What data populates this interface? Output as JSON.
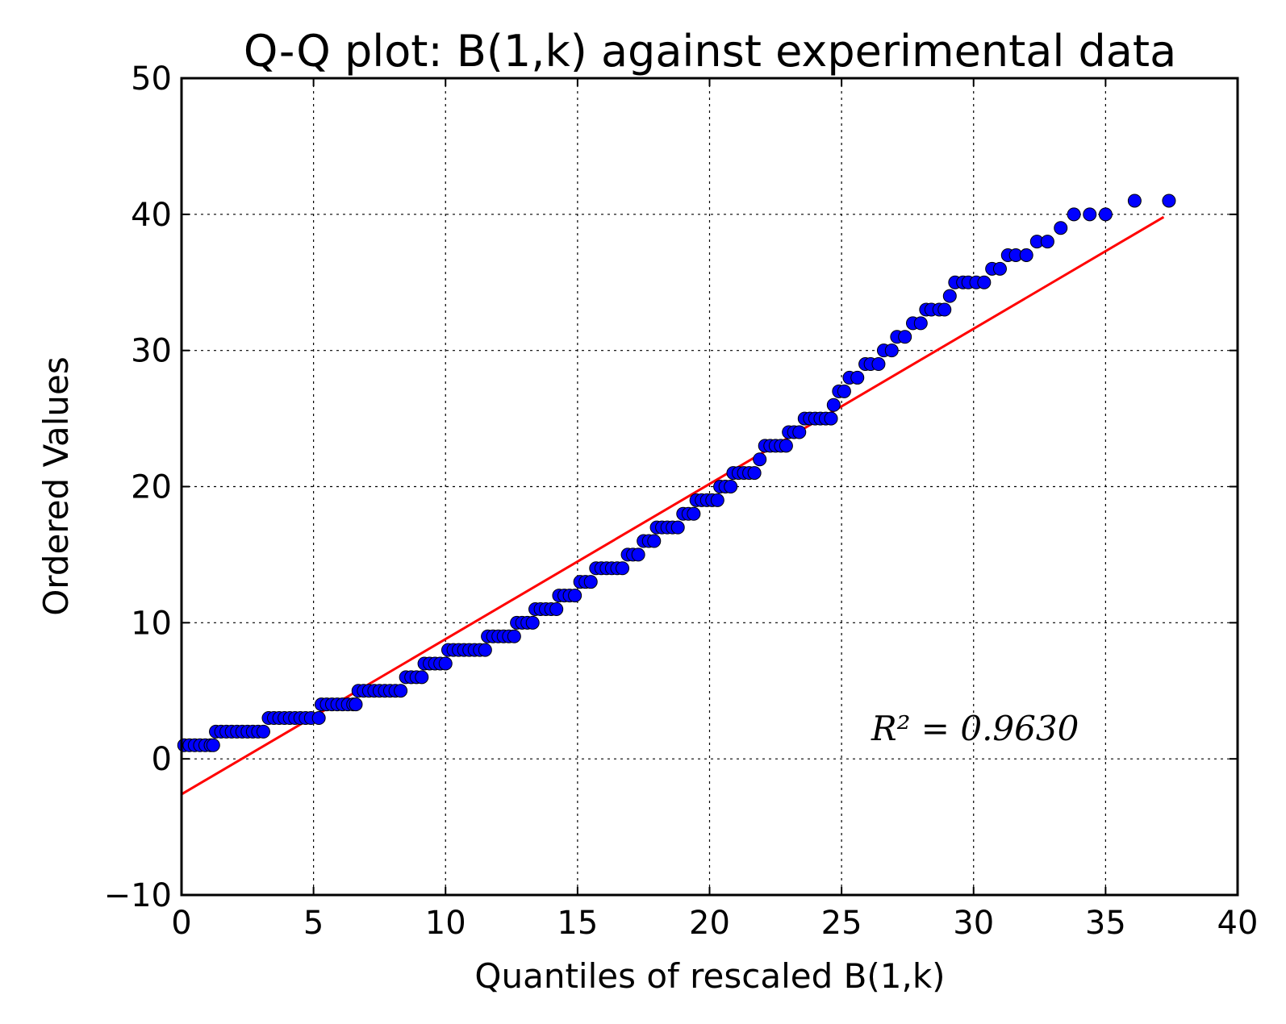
{
  "chart_data": {
    "type": "scatter",
    "title": "Q-Q plot: B(1,k) against experimental data",
    "xlabel": "Quantiles of rescaled B(1,k)",
    "ylabel": "Ordered Values",
    "xlim": [
      0,
      40
    ],
    "ylim": [
      -10,
      50
    ],
    "x_ticks": [
      "0",
      "5",
      "10",
      "15",
      "20",
      "25",
      "30",
      "35",
      "40"
    ],
    "y_ticks": [
      "−10",
      "0",
      "10",
      "20",
      "30",
      "40",
      "50"
    ],
    "grid": true,
    "annotation": {
      "text": "R² = 0.9630",
      "r_squared": "0.9630"
    },
    "fit_line": {
      "x": [
        0,
        37.2
      ],
      "y": [
        -2.6,
        39.8
      ],
      "color": "#ff0000"
    },
    "marker_color": "#0000ff",
    "series": [
      {
        "name": "data",
        "points": [
          [
            0.1,
            1
          ],
          [
            0.3,
            1
          ],
          [
            0.5,
            1
          ],
          [
            0.7,
            1
          ],
          [
            0.9,
            1
          ],
          [
            1.1,
            1
          ],
          [
            1.2,
            1
          ],
          [
            1.3,
            2
          ],
          [
            1.5,
            2
          ],
          [
            1.7,
            2
          ],
          [
            1.9,
            2
          ],
          [
            2.1,
            2
          ],
          [
            2.3,
            2
          ],
          [
            2.5,
            2
          ],
          [
            2.7,
            2
          ],
          [
            2.9,
            2
          ],
          [
            3.1,
            2
          ],
          [
            3.3,
            3
          ],
          [
            3.5,
            3
          ],
          [
            3.7,
            3
          ],
          [
            3.9,
            3
          ],
          [
            4.1,
            3
          ],
          [
            4.3,
            3
          ],
          [
            4.5,
            3
          ],
          [
            4.7,
            3
          ],
          [
            4.9,
            3
          ],
          [
            5.2,
            3
          ],
          [
            5.3,
            4
          ],
          [
            5.5,
            4
          ],
          [
            5.7,
            4
          ],
          [
            5.9,
            4
          ],
          [
            6.1,
            4
          ],
          [
            6.3,
            4
          ],
          [
            6.5,
            4
          ],
          [
            6.6,
            4
          ],
          [
            6.7,
            5
          ],
          [
            6.9,
            5
          ],
          [
            7.1,
            5
          ],
          [
            7.3,
            5
          ],
          [
            7.5,
            5
          ],
          [
            7.7,
            5
          ],
          [
            7.9,
            5
          ],
          [
            8.1,
            5
          ],
          [
            8.3,
            5
          ],
          [
            8.5,
            6
          ],
          [
            8.7,
            6
          ],
          [
            8.9,
            6
          ],
          [
            9.1,
            6
          ],
          [
            9.2,
            7
          ],
          [
            9.4,
            7
          ],
          [
            9.6,
            7
          ],
          [
            9.8,
            7
          ],
          [
            10.0,
            7
          ],
          [
            10.1,
            8
          ],
          [
            10.3,
            8
          ],
          [
            10.5,
            8
          ],
          [
            10.7,
            8
          ],
          [
            10.9,
            8
          ],
          [
            11.1,
            8
          ],
          [
            11.3,
            8
          ],
          [
            11.5,
            8
          ],
          [
            11.6,
            9
          ],
          [
            11.8,
            9
          ],
          [
            12.0,
            9
          ],
          [
            12.2,
            9
          ],
          [
            12.4,
            9
          ],
          [
            12.6,
            9
          ],
          [
            12.7,
            10
          ],
          [
            12.9,
            10
          ],
          [
            13.1,
            10
          ],
          [
            13.3,
            10
          ],
          [
            13.4,
            11
          ],
          [
            13.6,
            11
          ],
          [
            13.8,
            11
          ],
          [
            14.0,
            11
          ],
          [
            14.2,
            11
          ],
          [
            14.3,
            12
          ],
          [
            14.5,
            12
          ],
          [
            14.7,
            12
          ],
          [
            14.9,
            12
          ],
          [
            15.1,
            13
          ],
          [
            15.3,
            13
          ],
          [
            15.5,
            13
          ],
          [
            15.7,
            14
          ],
          [
            15.9,
            14
          ],
          [
            16.1,
            14
          ],
          [
            16.3,
            14
          ],
          [
            16.5,
            14
          ],
          [
            16.7,
            14
          ],
          [
            16.9,
            15
          ],
          [
            17.1,
            15
          ],
          [
            17.3,
            15
          ],
          [
            17.5,
            16
          ],
          [
            17.7,
            16
          ],
          [
            17.9,
            16
          ],
          [
            18.0,
            17
          ],
          [
            18.2,
            17
          ],
          [
            18.4,
            17
          ],
          [
            18.6,
            17
          ],
          [
            18.8,
            17
          ],
          [
            19.0,
            18
          ],
          [
            19.2,
            18
          ],
          [
            19.4,
            18
          ],
          [
            19.5,
            19
          ],
          [
            19.7,
            19
          ],
          [
            19.9,
            19
          ],
          [
            20.1,
            19
          ],
          [
            20.3,
            19
          ],
          [
            20.4,
            20
          ],
          [
            20.6,
            20
          ],
          [
            20.8,
            20
          ],
          [
            20.9,
            21
          ],
          [
            21.1,
            21
          ],
          [
            21.3,
            21
          ],
          [
            21.5,
            21
          ],
          [
            21.7,
            21
          ],
          [
            21.9,
            22
          ],
          [
            22.1,
            23
          ],
          [
            22.3,
            23
          ],
          [
            22.5,
            23
          ],
          [
            22.7,
            23
          ],
          [
            22.9,
            23
          ],
          [
            23.0,
            24
          ],
          [
            23.2,
            24
          ],
          [
            23.4,
            24
          ],
          [
            23.6,
            25
          ],
          [
            23.8,
            25
          ],
          [
            24.0,
            25
          ],
          [
            24.2,
            25
          ],
          [
            24.4,
            25
          ],
          [
            24.6,
            25
          ],
          [
            24.7,
            26
          ],
          [
            24.9,
            27
          ],
          [
            25.1,
            27
          ],
          [
            25.3,
            28
          ],
          [
            25.6,
            28
          ],
          [
            25.9,
            29
          ],
          [
            26.1,
            29
          ],
          [
            26.4,
            29
          ],
          [
            26.6,
            30
          ],
          [
            26.9,
            30
          ],
          [
            27.1,
            31
          ],
          [
            27.4,
            31
          ],
          [
            27.7,
            32
          ],
          [
            28.0,
            32
          ],
          [
            28.2,
            33
          ],
          [
            28.4,
            33
          ],
          [
            28.7,
            33
          ],
          [
            28.9,
            33
          ],
          [
            29.1,
            34
          ],
          [
            29.3,
            35
          ],
          [
            29.6,
            35
          ],
          [
            29.8,
            35
          ],
          [
            30.1,
            35
          ],
          [
            30.4,
            35
          ],
          [
            30.7,
            36
          ],
          [
            31.0,
            36
          ],
          [
            31.3,
            37
          ],
          [
            31.6,
            37
          ],
          [
            32.0,
            37
          ],
          [
            32.4,
            38
          ],
          [
            32.8,
            38
          ],
          [
            33.3,
            39
          ],
          [
            33.8,
            40
          ],
          [
            34.4,
            40
          ],
          [
            35.0,
            40
          ],
          [
            36.1,
            41
          ],
          [
            37.4,
            41
          ]
        ]
      }
    ]
  }
}
